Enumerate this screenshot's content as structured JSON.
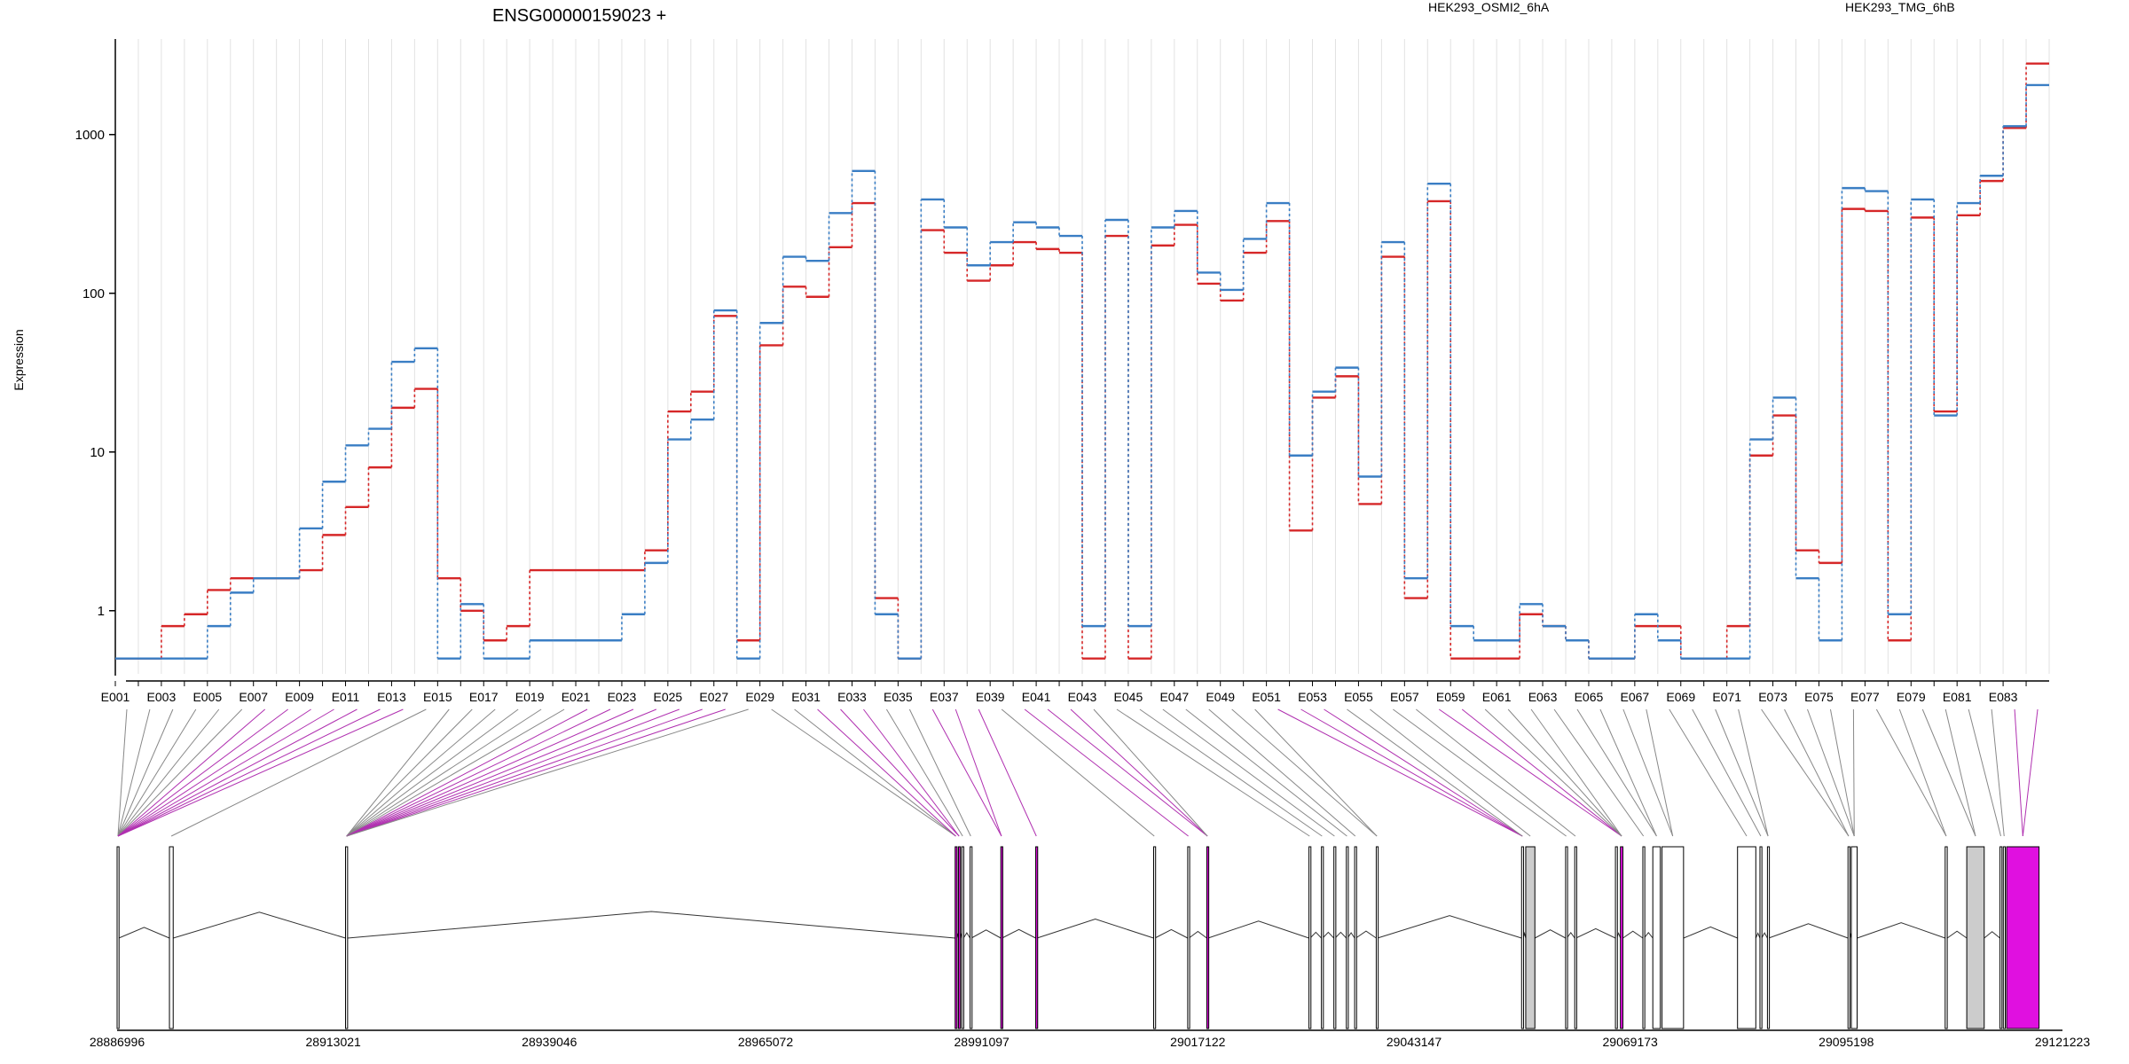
{
  "title": "ENSG00000159023 +",
  "ylabel": "Expression",
  "colors": {
    "osmi": "#d62728",
    "tmg": "#3a7ec4",
    "gridline": "#e2e2e2",
    "exon_normal": "#ffffff",
    "exon_gray": "#cccccc",
    "exon_magenta": "#e010e0",
    "connector_gray": "#888888",
    "connector_magenta": "#b030b0"
  },
  "chart_data": {
    "type": "line",
    "title": "ENSG00000159023 +",
    "xlabel": "",
    "ylabel": "Expression",
    "y_scale": "log",
    "ylim": [
      0.4,
      4000
    ],
    "y_ticks": [
      1,
      10,
      100,
      1000
    ],
    "y_tick_labels": [
      "1",
      "10",
      "100",
      "1000"
    ],
    "grid": true,
    "legend_placement": "top-right",
    "categories": [
      "E001",
      "E002",
      "E003",
      "E004",
      "E005",
      "E006",
      "E007",
      "E008",
      "E009",
      "E010",
      "E011",
      "E012",
      "E013",
      "E014",
      "E015",
      "E016",
      "E017",
      "E018",
      "E019",
      "E020",
      "E021",
      "E022",
      "E023",
      "E024",
      "E025",
      "E026",
      "E027",
      "E028",
      "E029",
      "E030",
      "E031",
      "E032",
      "E033",
      "E034",
      "E035",
      "E036",
      "E037",
      "E038",
      "E039",
      "E040",
      "E041",
      "E042",
      "E043",
      "E044",
      "E045",
      "E046",
      "E047",
      "E048",
      "E049",
      "E050",
      "E051",
      "E052",
      "E053",
      "E054",
      "E055",
      "E056",
      "E057",
      "E058",
      "E059",
      "E060",
      "E061",
      "E062",
      "E063",
      "E064",
      "E065",
      "E066",
      "E067",
      "E068",
      "E069",
      "E070",
      "E071",
      "E072",
      "E073",
      "E074",
      "E075",
      "E076",
      "E077",
      "E078",
      "E079",
      "E080",
      "E081",
      "E082",
      "E083",
      "E084"
    ],
    "x_tick_labels": [
      "E001",
      "E003",
      "E005",
      "E007",
      "E009",
      "E011",
      "E013",
      "E015",
      "E017",
      "E019",
      "E021",
      "E023",
      "E025",
      "E027",
      "E029",
      "E031",
      "E033",
      "E035",
      "E037",
      "E039",
      "E041",
      "E043",
      "E045",
      "E047",
      "E049",
      "E051",
      "E053",
      "E055",
      "E057",
      "E059",
      "E061",
      "E063",
      "E065",
      "E067",
      "E069",
      "E071",
      "E073",
      "E075",
      "E077",
      "E079",
      "E081",
      "E083"
    ],
    "series": [
      {
        "name": "HEK293_OSMI2_6hA",
        "color": "#d62728",
        "values": [
          0.5,
          0.5,
          0.8,
          0.95,
          1.35,
          1.6,
          1.6,
          1.6,
          1.8,
          3,
          4.5,
          8,
          19,
          25,
          1.6,
          1,
          0.65,
          0.8,
          1.8,
          1.8,
          1.8,
          1.8,
          1.8,
          2.4,
          18,
          24,
          72,
          0.65,
          47,
          110,
          95,
          195,
          370,
          1.2,
          0.5,
          250,
          180,
          120,
          150,
          210,
          190,
          180,
          0.5,
          230,
          0.5,
          200,
          270,
          115,
          90,
          180,
          285,
          3.2,
          22,
          30,
          4.7,
          170,
          1.2,
          380,
          0.5,
          0.5,
          0.5,
          0.95,
          0.8,
          0.65,
          0.5,
          0.5,
          0.8,
          0.8,
          0.5,
          0.5,
          0.8,
          9.5,
          17,
          2.4,
          2,
          340,
          330,
          0.65,
          300,
          18,
          310,
          510,
          1100,
          2800
        ]
      },
      {
        "name": "HEK293_TMG_6hB",
        "color": "#3a7ec4",
        "values": [
          0.5,
          0.5,
          0.5,
          0.5,
          0.8,
          1.3,
          1.6,
          1.6,
          3.3,
          6.5,
          11,
          14,
          37,
          45,
          0.5,
          1.1,
          0.5,
          0.5,
          0.65,
          0.65,
          0.65,
          0.65,
          0.95,
          2,
          12,
          16,
          78,
          0.5,
          65,
          170,
          160,
          320,
          590,
          0.95,
          0.5,
          390,
          260,
          150,
          210,
          280,
          260,
          230,
          0.8,
          290,
          0.8,
          260,
          330,
          135,
          105,
          220,
          370,
          9.5,
          24,
          34,
          7,
          210,
          1.6,
          490,
          0.8,
          0.65,
          0.65,
          1.1,
          0.8,
          0.65,
          0.5,
          0.5,
          0.95,
          0.65,
          0.5,
          0.5,
          0.5,
          12,
          22,
          1.6,
          0.65,
          460,
          440,
          0.95,
          390,
          17,
          370,
          550,
          1130,
          2050
        ]
      }
    ]
  },
  "genome": {
    "coord_labels": [
      "28886996",
      "28913021",
      "28939046",
      "28965072",
      "28991097",
      "29017122",
      "29043147",
      "29069173",
      "29095198",
      "29121223"
    ],
    "coord_range": [
      28886996,
      29121223
    ]
  },
  "exon_models": [
    {
      "start": 28886996,
      "end": 28887200,
      "fill": "white"
    },
    {
      "start": 28893300,
      "end": 28893750,
      "fill": "white"
    },
    {
      "start": 28914500,
      "end": 28914750,
      "fill": "white"
    },
    {
      "start": 28987900,
      "end": 28988050,
      "fill": "magenta"
    },
    {
      "start": 28988300,
      "end": 28988450,
      "fill": "magenta"
    },
    {
      "start": 28988700,
      "end": 28988900,
      "fill": "white"
    },
    {
      "start": 28989700,
      "end": 28989850,
      "fill": "white"
    },
    {
      "start": 28993400,
      "end": 28993550,
      "fill": "magenta"
    },
    {
      "start": 28997600,
      "end": 28997750,
      "fill": "magenta"
    },
    {
      "start": 29011800,
      "end": 29011950,
      "fill": "white"
    },
    {
      "start": 29015900,
      "end": 29016050,
      "fill": "white"
    },
    {
      "start": 29018200,
      "end": 29018350,
      "fill": "magenta"
    },
    {
      "start": 29030500,
      "end": 29030650,
      "fill": "white"
    },
    {
      "start": 29032000,
      "end": 29032150,
      "fill": "white"
    },
    {
      "start": 29033500,
      "end": 29033650,
      "fill": "white"
    },
    {
      "start": 29035000,
      "end": 29035150,
      "fill": "white"
    },
    {
      "start": 29036000,
      "end": 29036150,
      "fill": "white"
    },
    {
      "start": 29038600,
      "end": 29038750,
      "fill": "white"
    },
    {
      "start": 29056100,
      "end": 29056300,
      "fill": "white"
    },
    {
      "start": 29056600,
      "end": 29057700,
      "fill": "gray"
    },
    {
      "start": 29061400,
      "end": 29061550,
      "fill": "white"
    },
    {
      "start": 29062500,
      "end": 29062650,
      "fill": "white"
    },
    {
      "start": 29067400,
      "end": 29067550,
      "fill": "white"
    },
    {
      "start": 29068000,
      "end": 29068300,
      "fill": "magenta"
    },
    {
      "start": 29070700,
      "end": 29070850,
      "fill": "white"
    },
    {
      "start": 29071900,
      "end": 29072800,
      "fill": "white"
    },
    {
      "start": 29073000,
      "end": 29075600,
      "fill": "white"
    },
    {
      "start": 29082100,
      "end": 29084300,
      "fill": "white"
    },
    {
      "start": 29084800,
      "end": 29085000,
      "fill": "white"
    },
    {
      "start": 29085700,
      "end": 29085850,
      "fill": "white"
    },
    {
      "start": 29095400,
      "end": 29095550,
      "fill": "white"
    },
    {
      "start": 29095800,
      "end": 29096500,
      "fill": "white"
    },
    {
      "start": 29107100,
      "end": 29107350,
      "fill": "white"
    },
    {
      "start": 29109700,
      "end": 29111800,
      "fill": "gray"
    },
    {
      "start": 29113700,
      "end": 29113900,
      "fill": "white"
    },
    {
      "start": 29114100,
      "end": 29114300,
      "fill": "white"
    },
    {
      "start": 29114500,
      "end": 29118400,
      "fill": "magenta"
    }
  ],
  "connector_map": [
    {
      "exon": "E001",
      "target": 0,
      "color": "gray"
    },
    {
      "exon": "E002",
      "target": 0,
      "color": "gray"
    },
    {
      "exon": "E003",
      "target": 0,
      "color": "gray"
    },
    {
      "exon": "E004",
      "target": 0,
      "color": "gray"
    },
    {
      "exon": "E005",
      "target": 0,
      "color": "gray"
    },
    {
      "exon": "E006",
      "target": 0,
      "color": "gray"
    },
    {
      "exon": "E007",
      "target": 0,
      "color": "magenta"
    },
    {
      "exon": "E008",
      "target": 0,
      "color": "magenta"
    },
    {
      "exon": "E009",
      "target": 0,
      "color": "magenta"
    },
    {
      "exon": "E010",
      "target": 0,
      "color": "magenta"
    },
    {
      "exon": "E011",
      "target": 0,
      "color": "magenta"
    },
    {
      "exon": "E012",
      "target": 0,
      "color": "magenta"
    },
    {
      "exon": "E013",
      "target": 0,
      "color": "magenta"
    },
    {
      "exon": "E014",
      "target": 1,
      "color": "gray"
    },
    {
      "exon": "E015",
      "target": 2,
      "color": "gray"
    },
    {
      "exon": "E016",
      "target": 2,
      "color": "gray"
    },
    {
      "exon": "E017",
      "target": 2,
      "color": "gray"
    },
    {
      "exon": "E018",
      "target": 2,
      "color": "gray"
    },
    {
      "exon": "E019",
      "target": 2,
      "color": "gray"
    },
    {
      "exon": "E020",
      "target": 2,
      "color": "gray"
    },
    {
      "exon": "E021",
      "target": 2,
      "color": "magenta"
    },
    {
      "exon": "E022",
      "target": 2,
      "color": "magenta"
    },
    {
      "exon": "E023",
      "target": 2,
      "color": "magenta"
    },
    {
      "exon": "E024",
      "target": 2,
      "color": "magenta"
    },
    {
      "exon": "E025",
      "target": 2,
      "color": "magenta"
    },
    {
      "exon": "E026",
      "target": 2,
      "color": "magenta"
    },
    {
      "exon": "E027",
      "target": 2,
      "color": "magenta"
    },
    {
      "exon": "E028",
      "target": 2,
      "color": "gray"
    },
    {
      "exon": "E029",
      "target": 3,
      "color": "gray"
    },
    {
      "exon": "E030",
      "target": 3,
      "color": "gray"
    },
    {
      "exon": "E031",
      "target": 3,
      "color": "magenta"
    },
    {
      "exon": "E032",
      "target": 4,
      "color": "magenta"
    },
    {
      "exon": "E033",
      "target": 4,
      "color": "magenta"
    },
    {
      "exon": "E034",
      "target": 5,
      "color": "gray"
    },
    {
      "exon": "E035",
      "target": 6,
      "color": "gray"
    },
    {
      "exon": "E036",
      "target": 7,
      "color": "magenta"
    },
    {
      "exon": "E037",
      "target": 7,
      "color": "magenta"
    },
    {
      "exon": "E038",
      "target": 8,
      "color": "magenta"
    },
    {
      "exon": "E039",
      "target": 9,
      "color": "gray"
    },
    {
      "exon": "E040",
      "target": 10,
      "color": "magenta"
    },
    {
      "exon": "E041",
      "target": 11,
      "color": "magenta"
    },
    {
      "exon": "E042",
      "target": 11,
      "color": "magenta"
    },
    {
      "exon": "E043",
      "target": 11,
      "color": "gray"
    },
    {
      "exon": "E044",
      "target": 12,
      "color": "gray"
    },
    {
      "exon": "E045",
      "target": 13,
      "color": "gray"
    },
    {
      "exon": "E046",
      "target": 14,
      "color": "gray"
    },
    {
      "exon": "E047",
      "target": 15,
      "color": "gray"
    },
    {
      "exon": "E048",
      "target": 16,
      "color": "gray"
    },
    {
      "exon": "E049",
      "target": 17,
      "color": "gray"
    },
    {
      "exon": "E050",
      "target": 17,
      "color": "gray"
    },
    {
      "exon": "E051",
      "target": 18,
      "color": "magenta"
    },
    {
      "exon": "E052",
      "target": 18,
      "color": "magenta"
    },
    {
      "exon": "E053",
      "target": 18,
      "color": "magenta"
    },
    {
      "exon": "E054",
      "target": 18,
      "color": "gray"
    },
    {
      "exon": "E055",
      "target": 19,
      "color": "gray"
    },
    {
      "exon": "E056",
      "target": 20,
      "color": "gray"
    },
    {
      "exon": "E057",
      "target": 21,
      "color": "gray"
    },
    {
      "exon": "E058",
      "target": 23,
      "color": "magenta"
    },
    {
      "exon": "E059",
      "target": 23,
      "color": "magenta"
    },
    {
      "exon": "E060",
      "target": 23,
      "color": "gray"
    },
    {
      "exon": "E061",
      "target": 23,
      "color": "gray"
    },
    {
      "exon": "E062",
      "target": 23,
      "color": "gray"
    },
    {
      "exon": "E063",
      "target": 24,
      "color": "gray"
    },
    {
      "exon": "E064",
      "target": 25,
      "color": "gray"
    },
    {
      "exon": "E065",
      "target": 25,
      "color": "gray"
    },
    {
      "exon": "E066",
      "target": 26,
      "color": "gray"
    },
    {
      "exon": "E067",
      "target": 26,
      "color": "gray"
    },
    {
      "exon": "E068",
      "target": 27,
      "color": "gray"
    },
    {
      "exon": "E069",
      "target": 28,
      "color": "gray"
    },
    {
      "exon": "E070",
      "target": 29,
      "color": "gray"
    },
    {
      "exon": "E071",
      "target": 29,
      "color": "gray"
    },
    {
      "exon": "E072",
      "target": 30,
      "color": "gray"
    },
    {
      "exon": "E073",
      "target": 30,
      "color": "gray"
    },
    {
      "exon": "E074",
      "target": 31,
      "color": "gray"
    },
    {
      "exon": "E075",
      "target": 31,
      "color": "gray"
    },
    {
      "exon": "E076",
      "target": 31,
      "color": "gray"
    },
    {
      "exon": "E077",
      "target": 32,
      "color": "gray"
    },
    {
      "exon": "E078",
      "target": 32,
      "color": "gray"
    },
    {
      "exon": "E079",
      "target": 33,
      "color": "gray"
    },
    {
      "exon": "E080",
      "target": 33,
      "color": "gray"
    },
    {
      "exon": "E081",
      "target": 34,
      "color": "gray"
    },
    {
      "exon": "E082",
      "target": 35,
      "color": "gray"
    },
    {
      "exon": "E083",
      "target": 36,
      "color": "magenta"
    },
    {
      "exon": "E084",
      "target": 36,
      "color": "magenta"
    }
  ]
}
